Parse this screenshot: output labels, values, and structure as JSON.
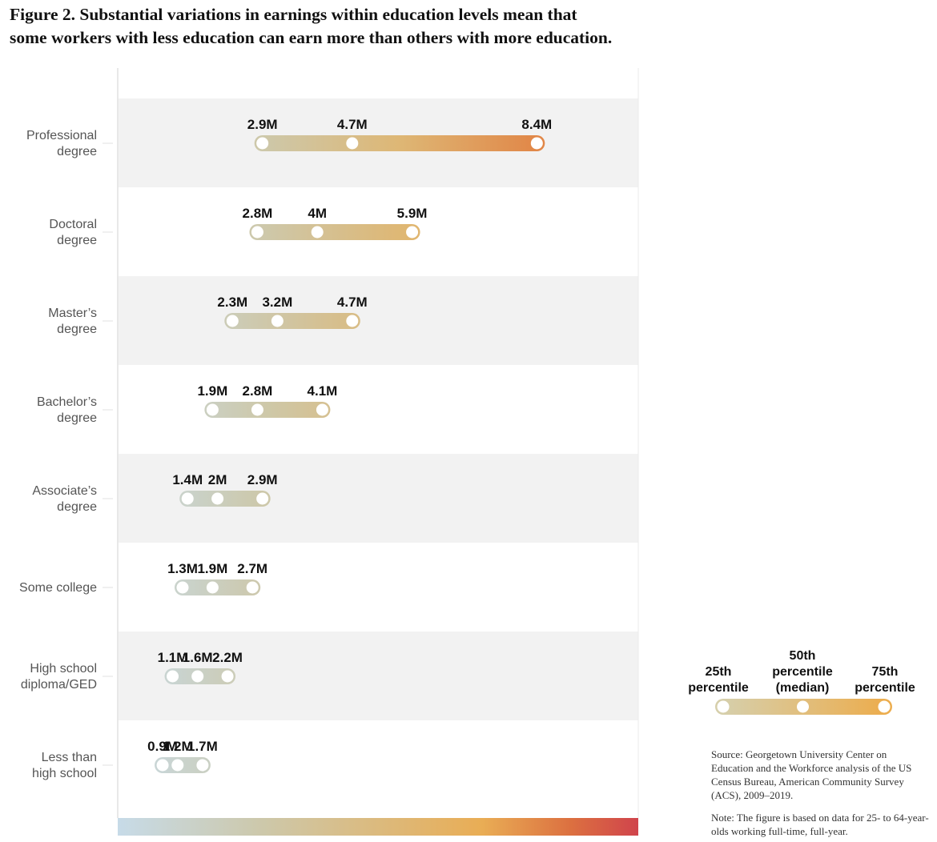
{
  "title": {
    "line1": "Figure 2. Substantial variations in earnings within education levels mean that",
    "line2": "some workers with less education can earn more than others with more education."
  },
  "chart_data": {
    "type": "dumbbell",
    "unit": "millions of dollars (lifetime earnings)",
    "xlim": [
      0,
      10
    ],
    "categories": [
      {
        "label_lines": [
          "Professional",
          "degree"
        ],
        "p25": 2.9,
        "p50": 4.7,
        "p75": 8.4,
        "labels": [
          "2.9M",
          "4.7M",
          "8.4M"
        ]
      },
      {
        "label_lines": [
          "Doctoral",
          "degree"
        ],
        "p25": 2.8,
        "p50": 4.0,
        "p75": 5.9,
        "labels": [
          "2.8M",
          "4M",
          "5.9M"
        ]
      },
      {
        "label_lines": [
          "Master’s",
          "degree"
        ],
        "p25": 2.3,
        "p50": 3.2,
        "p75": 4.7,
        "labels": [
          "2.3M",
          "3.2M",
          "4.7M"
        ]
      },
      {
        "label_lines": [
          "Bachelor’s",
          "degree"
        ],
        "p25": 1.9,
        "p50": 2.8,
        "p75": 4.1,
        "labels": [
          "1.9M",
          "2.8M",
          "4.1M"
        ]
      },
      {
        "label_lines": [
          "Associate’s",
          "degree"
        ],
        "p25": 1.4,
        "p50": 2.0,
        "p75": 2.9,
        "labels": [
          "1.4M",
          "2M",
          "2.9M"
        ]
      },
      {
        "label_lines": [
          "Some college"
        ],
        "p25": 1.3,
        "p50": 1.9,
        "p75": 2.7,
        "labels": [
          "1.3M",
          "1.9M",
          "2.7M"
        ]
      },
      {
        "label_lines": [
          "High school",
          "diploma/GED"
        ],
        "p25": 1.1,
        "p50": 1.6,
        "p75": 2.2,
        "labels": [
          "1.1M",
          "1.6M",
          "2.2M"
        ]
      },
      {
        "label_lines": [
          "Less than",
          "high school"
        ],
        "p25": 0.9,
        "p50": 1.2,
        "p75": 1.7,
        "labels": [
          "0.9M",
          "1.2M",
          "1.7M"
        ]
      }
    ],
    "legend": {
      "items": [
        {
          "lines": [
            "25th",
            "percentile"
          ]
        },
        {
          "lines": [
            "50th",
            "percentile",
            "(median)"
          ]
        },
        {
          "lines": [
            "75th",
            "percentile"
          ]
        }
      ]
    },
    "colors": {
      "band": "#f2f2f2",
      "axis": "#d0d0d0",
      "scale_stops": [
        "#c7dbe8",
        "#cdc8aa",
        "#e9ad55",
        "#dc7040",
        "#d0444c"
      ]
    }
  },
  "source": "Source: Georgetown University Center on Education and the Workforce analysis of the US Census Bureau, American Community Survey (ACS), 2009–2019.",
  "note": "Note: The figure is based on data for 25- to 64-year-olds working full-time, full-year."
}
